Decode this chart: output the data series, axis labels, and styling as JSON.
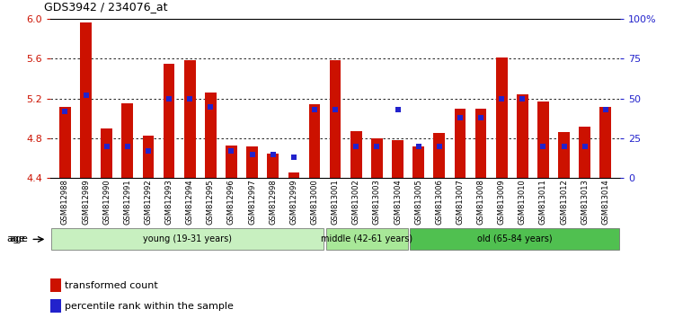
{
  "title": "GDS3942 / 234076_at",
  "samples": [
    "GSM812988",
    "GSM812989",
    "GSM812990",
    "GSM812991",
    "GSM812992",
    "GSM812993",
    "GSM812994",
    "GSM812995",
    "GSM812996",
    "GSM812997",
    "GSM812998",
    "GSM812999",
    "GSM813000",
    "GSM813001",
    "GSM813002",
    "GSM813003",
    "GSM813004",
    "GSM813005",
    "GSM813006",
    "GSM813007",
    "GSM813008",
    "GSM813009",
    "GSM813010",
    "GSM813011",
    "GSM813012",
    "GSM813013",
    "GSM813014"
  ],
  "bar_values": [
    5.12,
    5.97,
    4.9,
    5.15,
    4.83,
    5.55,
    5.59,
    5.26,
    4.73,
    4.72,
    4.65,
    4.46,
    5.14,
    5.59,
    4.87,
    4.8,
    4.78,
    4.72,
    4.85,
    5.1,
    5.1,
    5.61,
    5.24,
    5.17,
    4.86,
    4.92,
    5.12
  ],
  "dot_values": [
    42,
    52,
    20,
    20,
    17,
    50,
    50,
    45,
    17,
    15,
    15,
    13,
    43,
    43,
    20,
    20,
    43,
    20,
    20,
    38,
    38,
    50,
    50,
    20,
    20,
    20,
    43
  ],
  "groups": [
    {
      "label": "young (19-31 years)",
      "start": 0,
      "end": 13,
      "color": "#c8f0c0"
    },
    {
      "label": "middle (42-61 years)",
      "start": 13,
      "end": 17,
      "color": "#a8e898"
    },
    {
      "label": "old (65-84 years)",
      "start": 17,
      "end": 27,
      "color": "#50c050"
    }
  ],
  "ylim": [
    4.4,
    6.0
  ],
  "y2lim": [
    0,
    100
  ],
  "yticks": [
    4.4,
    4.8,
    5.2,
    5.6,
    6.0
  ],
  "y2ticks": [
    0,
    25,
    50,
    75,
    100
  ],
  "y2ticklabels": [
    "0",
    "25",
    "50",
    "75",
    "100%"
  ],
  "bar_color": "#cc1100",
  "dot_color": "#2222cc",
  "bar_bottom": 4.4,
  "legend_items": [
    {
      "label": "transformed count",
      "color": "#cc1100"
    },
    {
      "label": "percentile rank within the sample",
      "color": "#2222cc"
    }
  ]
}
